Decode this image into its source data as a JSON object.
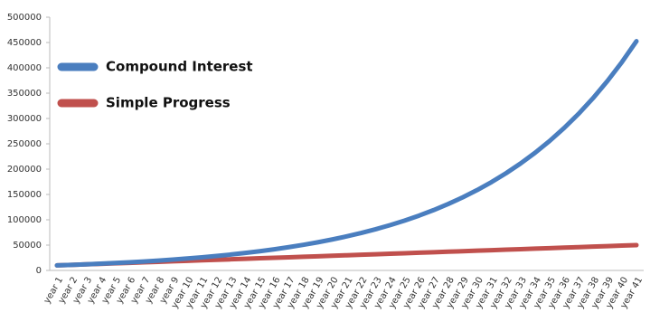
{
  "chart_data": {
    "type": "line",
    "categories": [
      "year 1",
      "year 2",
      "year 3",
      "year 4",
      "year 5",
      "year 6",
      "year 7",
      "year 8",
      "year 9",
      "year 10",
      "year 11",
      "year 12",
      "year 13",
      "year 14",
      "year 15",
      "year 16",
      "year 17",
      "year 18",
      "year 19",
      "year 20",
      "year 21",
      "year 22",
      "year 23",
      "year 24",
      "year 25",
      "year 26",
      "year 27",
      "year 28",
      "year 29",
      "year 30",
      "year 31",
      "year 32",
      "year 33",
      "year 34",
      "year 35",
      "year 36",
      "year 37",
      "year 38",
      "year 39",
      "year 40",
      "year 41"
    ],
    "series": [
      {
        "name": "Compound Interest",
        "color": "#4a7ebf",
        "values": [
          10000,
          11000,
          12100,
          13310,
          14641,
          16105,
          17716,
          19487,
          21436,
          23579,
          25937,
          28531,
          31384,
          34523,
          37975,
          41772,
          45950,
          50545,
          55599,
          61159,
          67275,
          74002,
          81403,
          89543,
          98497,
          108347,
          119182,
          131100,
          144210,
          158631,
          174494,
          191943,
          211138,
          232252,
          255477,
          281024,
          309127,
          340039,
          374043,
          411448,
          452593
        ]
      },
      {
        "name": "Simple Progress",
        "color": "#c0504d",
        "values": [
          10000,
          11000,
          12000,
          13000,
          14000,
          15000,
          16000,
          17000,
          18000,
          19000,
          20000,
          21000,
          22000,
          23000,
          24000,
          25000,
          26000,
          27000,
          28000,
          29000,
          30000,
          31000,
          32000,
          33000,
          34000,
          35000,
          36000,
          37000,
          38000,
          39000,
          40000,
          41000,
          42000,
          43000,
          44000,
          45000,
          46000,
          47000,
          48000,
          49000,
          50000
        ]
      }
    ],
    "ylim": [
      0,
      500000
    ],
    "yticks": [
      0,
      50000,
      100000,
      150000,
      200000,
      250000,
      300000,
      350000,
      400000,
      450000,
      500000
    ],
    "grid": false
  }
}
